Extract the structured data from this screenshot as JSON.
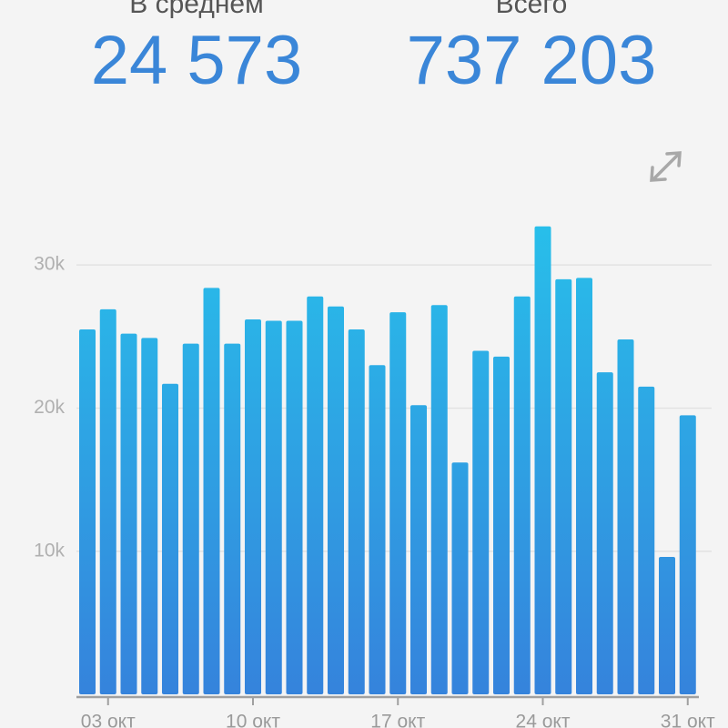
{
  "header": {
    "average_label": "В среднем",
    "average_value": "24 573",
    "total_label": "Всего",
    "total_value": "737 203"
  },
  "chart_data": {
    "type": "bar",
    "categories": [
      null,
      "03 окт",
      null,
      null,
      null,
      null,
      null,
      null,
      "10 окт",
      null,
      null,
      null,
      null,
      null,
      null,
      "17 окт",
      null,
      null,
      null,
      null,
      null,
      null,
      "24 окт",
      null,
      null,
      null,
      null,
      null,
      null,
      "31 окт"
    ],
    "values": [
      25500,
      26900,
      25200,
      24900,
      21700,
      24500,
      28400,
      24500,
      26200,
      26100,
      26100,
      27800,
      27100,
      25500,
      23000,
      26700,
      20200,
      27200,
      16200,
      24000,
      23600,
      27800,
      32700,
      29000,
      29100,
      22500,
      24800,
      21500,
      9600,
      19500
    ],
    "ylim": [
      0,
      33000
    ],
    "yticks": [
      {
        "value": 10000,
        "label": "10k"
      },
      {
        "value": 20000,
        "label": "20k"
      },
      {
        "value": 30000,
        "label": "30k"
      }
    ],
    "grid": true
  }
}
